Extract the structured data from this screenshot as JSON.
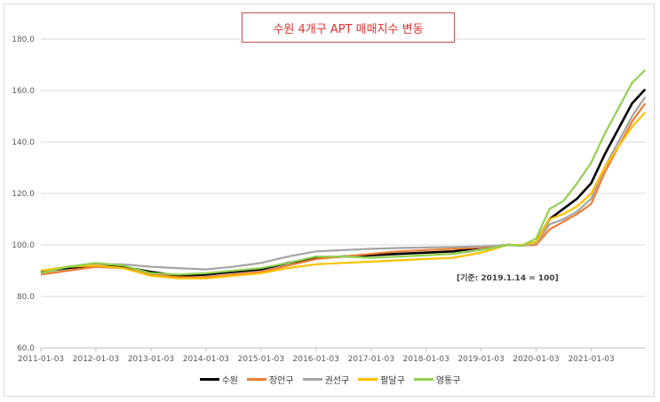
{
  "chart_data": {
    "type": "line",
    "title": "수원 4개구 APT 매매지수 변동",
    "annotation": "[기준: 2019.1.14 = 100]",
    "ylim": [
      60,
      180
    ],
    "yticks": [
      "60.0",
      "80.0",
      "100.0",
      "120.0",
      "140.0",
      "160.0",
      "180.0"
    ],
    "xticks": [
      "2011-01-03",
      "2012-01-03",
      "2013-01-03",
      "2014-01-03",
      "2015-01-03",
      "2016-01-03",
      "2017-01-03",
      "2018-01-03",
      "2019-01-03",
      "2020-01-03",
      "2021-01-03"
    ],
    "x": [
      "2011-01-03",
      "2011-07-01",
      "2012-01-03",
      "2012-07-01",
      "2013-01-03",
      "2013-07-01",
      "2014-01-03",
      "2014-07-01",
      "2015-01-03",
      "2015-07-01",
      "2016-01-03",
      "2016-07-01",
      "2017-01-03",
      "2017-07-01",
      "2018-01-03",
      "2018-07-01",
      "2019-01-03",
      "2019-07-01",
      "2019-10-01",
      "2020-01-03",
      "2020-04-01",
      "2020-07-01",
      "2020-10-01",
      "2021-01-03",
      "2021-04-01",
      "2021-07-01",
      "2021-10-01",
      "2021-12-27"
    ],
    "grid": true,
    "legend_position": "bottom",
    "series": [
      {
        "name": "수원",
        "color": "#000000",
        "values": [
          89.5,
          91.0,
          92.0,
          91.5,
          89.5,
          88.0,
          88.5,
          89.5,
          90.5,
          93.0,
          95.0,
          95.5,
          96.0,
          96.5,
          97.0,
          97.5,
          99.0,
          100.0,
          99.8,
          101.0,
          110.0,
          114.0,
          118.0,
          124.0,
          135.0,
          145.0,
          155.0,
          160.5
        ]
      },
      {
        "name": "장안구",
        "color": "#ed7d31",
        "values": [
          88.5,
          90.0,
          91.5,
          91.0,
          88.5,
          87.5,
          87.5,
          88.5,
          89.5,
          92.0,
          94.5,
          95.5,
          96.5,
          97.5,
          98.0,
          98.5,
          99.0,
          100.0,
          99.8,
          100.0,
          106.0,
          109.0,
          112.0,
          116.0,
          128.0,
          138.0,
          148.0,
          155.0
        ]
      },
      {
        "name": "권선구",
        "color": "#a5a5a5",
        "values": [
          89.0,
          91.5,
          92.5,
          92.5,
          91.5,
          91.0,
          90.5,
          91.5,
          93.0,
          95.5,
          97.5,
          98.0,
          98.5,
          98.8,
          99.0,
          99.2,
          99.4,
          100.0,
          99.8,
          100.5,
          108.0,
          110.0,
          113.0,
          118.0,
          130.0,
          140.0,
          150.0,
          157.5
        ]
      },
      {
        "name": "팔달구",
        "color": "#ffc000",
        "values": [
          90.0,
          91.5,
          92.0,
          91.0,
          88.0,
          87.0,
          87.0,
          88.0,
          89.0,
          91.0,
          92.5,
          93.0,
          93.5,
          94.0,
          94.5,
          95.0,
          97.0,
          100.0,
          100.0,
          101.0,
          110.0,
          112.0,
          115.0,
          120.0,
          130.0,
          138.0,
          146.0,
          151.5
        ]
      },
      {
        "name": "영통구",
        "color": "#92d050",
        "values": [
          89.0,
          91.5,
          93.0,
          92.0,
          89.0,
          88.5,
          89.0,
          90.0,
          91.0,
          93.0,
          95.5,
          95.5,
          95.0,
          95.5,
          96.0,
          96.5,
          98.0,
          100.0,
          99.7,
          102.5,
          114.0,
          117.0,
          124.0,
          132.0,
          143.0,
          153.0,
          163.0,
          168.0
        ]
      }
    ]
  }
}
